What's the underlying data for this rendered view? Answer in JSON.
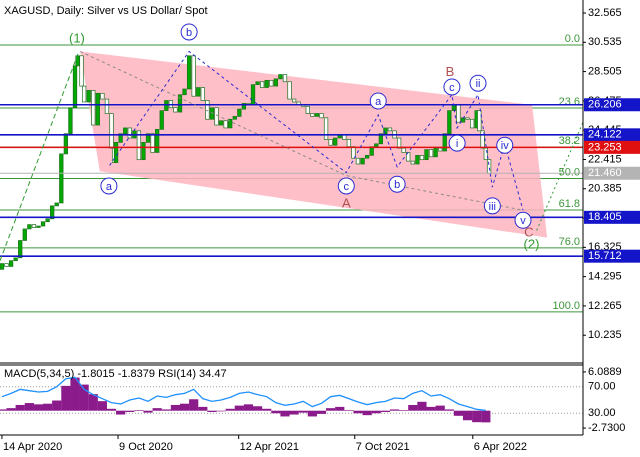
{
  "chart_data": [
    {
      "type": "candles",
      "title": "XAGUSD, Daily:  Silver vs US Dollar/ Spot",
      "color": "#00a800",
      "x": [
        -7,
        0,
        7,
        14,
        21,
        28,
        35,
        42,
        49,
        56,
        63,
        70,
        77,
        84,
        91,
        98,
        105,
        112,
        116,
        122,
        126,
        133,
        140,
        147,
        154,
        161,
        168,
        172,
        175,
        182,
        189,
        196,
        203,
        210,
        217,
        224,
        231,
        238,
        245,
        252,
        259,
        266,
        273,
        280,
        287,
        294,
        301,
        308,
        315,
        322,
        329,
        336,
        343,
        350,
        357,
        364,
        371,
        378,
        385,
        392,
        399,
        406,
        413,
        420,
        427,
        434,
        441,
        448,
        455,
        462,
        469,
        476,
        483,
        490,
        497,
        504,
        511,
        518,
        525,
        532,
        539,
        546,
        553,
        560,
        567,
        574,
        581,
        588,
        595,
        602,
        609,
        616,
        623,
        630,
        637,
        644,
        651,
        658,
        665,
        672,
        679,
        686,
        693,
        700,
        707,
        714,
        721,
        728,
        732,
        737,
        742,
        747
      ],
      "values": [
        14.8,
        15.2,
        15.0,
        15.4,
        15.6,
        16.8,
        17.6,
        17.9,
        17.7,
        17.8,
        18.1,
        18.3,
        19.2,
        19.4,
        22.8,
        24.2,
        26.0,
        28.9,
        29.6,
        27.5,
        26.4,
        27.2,
        24.8,
        27.0,
        26.6,
        25.6,
        23.2,
        22.2,
        23.6,
        24.2,
        24.6,
        23.9,
        24.4,
        22.4,
        23.6,
        24.2,
        22.9,
        24.5,
        25.8,
        26.5,
        26.0,
        25.7,
        26.9,
        27.3,
        29.6,
        26.8,
        27.4,
        26.5,
        25.2,
        26.0,
        24.8,
        25.1,
        24.6,
        25.2,
        25.4,
        25.9,
        26.3,
        26.2,
        27.6,
        27.8,
        27.4,
        27.9,
        27.5,
        28.0,
        28.3,
        27.8,
        26.6,
        26.4,
        26.2,
        26.1,
        25.6,
        25.4,
        25.6,
        25.3,
        23.8,
        23.4,
        23.9,
        24.1,
        23.8,
        23.3,
        22.5,
        22.1,
        22.5,
        22.7,
        23.3,
        23.5,
        24.2,
        24.6,
        24.4,
        23.9,
        23.2,
        22.9,
        22.3,
        22.1,
        22.7,
        22.4,
        23.1,
        22.6,
        23.2,
        23.0,
        24.2,
        25.8,
        26.2,
        25.0,
        25.3,
        25.2,
        24.6,
        25.8,
        24.4,
        23.2,
        22.4,
        21.46
      ],
      "xlim": [
        -3,
        891
      ],
      "ylim": [
        8.379,
        33.466
      ],
      "xticks": [
        {
          "value": 0,
          "label": "14 Apr 2020"
        },
        {
          "value": 178,
          "label": "9 Oct 2020"
        },
        {
          "value": 363,
          "label": "12 Apr 2021"
        },
        {
          "value": 541,
          "label": "7 Oct 2021"
        },
        {
          "value": 722,
          "label": "6 Apr 2022"
        }
      ],
      "yticks": [
        32.565,
        30.535,
        28.505,
        26.475,
        24.445,
        22.415,
        20.385,
        18.355,
        16.325,
        14.295,
        12.265,
        10.235
      ],
      "levels": [
        {
          "price": 26.206,
          "color": "#1414c8"
        },
        {
          "price": 24.122,
          "color": "#1414c8"
        },
        {
          "price": 23.253,
          "color": "#e01010"
        },
        {
          "price": 21.46,
          "label": "21.460",
          "color": "#b4b4b4"
        },
        {
          "price": 18.405,
          "color": "#1414c8"
        },
        {
          "price": 15.712,
          "color": "#1414c8"
        }
      ],
      "fib_color": "#3c963c",
      "fib_levels": [
        {
          "price": 30.35,
          "label": "0.0"
        },
        {
          "price": 25.98,
          "label": "23.6"
        },
        {
          "price": 23.28,
          "label": "38.2"
        },
        {
          "price": 21.1,
          "label": "50.0"
        },
        {
          "price": 18.91,
          "label": "61.8"
        },
        {
          "price": 16.29,
          "label": "76.0"
        },
        {
          "price": 11.85,
          "label": "100.0"
        }
      ],
      "channel": {
        "color": "#ffb4c0",
        "points": [
          [
            120,
            29.9
          ],
          [
            813,
            26.2
          ],
          [
            836,
            17.0
          ],
          [
            150,
            21.6
          ]
        ]
      },
      "wave_paths": [
        {
          "color": "#2e9b2e",
          "dash": "5,3",
          "points": [
            [
              -3,
              15.4
            ],
            [
              118,
              29.9
            ]
          ]
        },
        {
          "color": "#2e9b2e",
          "dash": "2,3",
          "points": [
            [
              820,
              17.5
            ],
            [
              891,
              25.0
            ]
          ]
        },
        {
          "color": "#8a8a8a",
          "dash": "3,3",
          "points": [
            [
              120,
              29.9
            ],
            [
              528,
              21.3
            ],
            [
              799,
              18.9
            ]
          ]
        },
        {
          "color": "#2a2ad0",
          "dash": "3,3",
          "points": [
            [
              165,
              22.0
            ],
            [
              287,
              29.9
            ],
            [
              528,
              21.5
            ],
            [
              577,
              25.5
            ],
            [
              606,
              21.9
            ],
            [
              690,
              26.9
            ],
            [
              698,
              24.6
            ],
            [
              730,
              26.9
            ],
            [
              752,
              20.5
            ],
            [
              771,
              23.5
            ],
            [
              799,
              18.9
            ]
          ]
        }
      ],
      "wave_labels": [
        {
          "text": "(1)",
          "x": 115,
          "y": 30.83,
          "color": "#2e9b2e",
          "circled": false
        },
        {
          "text": "b",
          "x": 287,
          "y": 31.25,
          "color": "#2a2ad0",
          "circled": true
        },
        {
          "text": "a",
          "x": 164,
          "y": 20.58,
          "color": "#2a2ad0",
          "circled": true
        },
        {
          "text": "a",
          "x": 577,
          "y": 26.47,
          "color": "#2a2ad0",
          "circled": true
        },
        {
          "text": "c",
          "x": 528,
          "y": 20.58,
          "color": "#2a2ad0",
          "circled": true
        },
        {
          "text": "A",
          "x": 528,
          "y": 19.4,
          "color": "#b05050",
          "circled": false
        },
        {
          "text": "b",
          "x": 606,
          "y": 20.7,
          "color": "#2a2ad0",
          "circled": true
        },
        {
          "text": "B",
          "x": 687,
          "y": 28.5,
          "color": "#b05050",
          "circled": false
        },
        {
          "text": "c",
          "x": 690,
          "y": 27.44,
          "color": "#2a2ad0",
          "circled": true
        },
        {
          "text": "ii",
          "x": 730,
          "y": 27.7,
          "color": "#2a2ad0",
          "circled": true
        },
        {
          "text": "i",
          "x": 698,
          "y": 23.55,
          "color": "#2a2ad0",
          "circled": true
        },
        {
          "text": "iv",
          "x": 771,
          "y": 23.4,
          "color": "#2a2ad0",
          "circled": true
        },
        {
          "text": "iii",
          "x": 752,
          "y": 19.2,
          "color": "#2a2ad0",
          "circled": true
        },
        {
          "text": "v",
          "x": 799,
          "y": 18.2,
          "color": "#2a2ad0",
          "circled": true
        },
        {
          "text": "C",
          "x": 808,
          "y": 17.4,
          "color": "#b05050",
          "circled": false
        },
        {
          "text": "(2)",
          "x": 812,
          "y": 16.55,
          "color": "#2e9b2e",
          "circled": false
        }
      ]
    },
    {
      "type": "macd_rsi",
      "title": "MACD(5,34,5) -1.8015 -1.8379 RSI(14) 34.47",
      "x": [
        0,
        14,
        28,
        42,
        56,
        70,
        84,
        98,
        112,
        126,
        140,
        154,
        168,
        182,
        196,
        210,
        224,
        238,
        252,
        266,
        280,
        294,
        308,
        322,
        336,
        350,
        364,
        378,
        392,
        406,
        420,
        434,
        448,
        462,
        476,
        490,
        504,
        518,
        532,
        546,
        560,
        574,
        588,
        602,
        616,
        630,
        644,
        658,
        672,
        686,
        700,
        714,
        728,
        742
      ],
      "xlim": [
        -3,
        891
      ],
      "ylim": [
        -3.813,
        7.017
      ],
      "yticks": [
        6.0889,
        {
          "value": -2.73,
          "label": "-2.7300"
        }
      ],
      "y2lim": [
        -2.6,
        101.1
      ],
      "y2ticks": [
        {
          "value": 70,
          "label": "70.00"
        },
        {
          "value": 30,
          "label": "30.00"
        }
      ],
      "series": [
        {
          "color": "#8b1a8b",
          "values": [
            0.2,
            0.4,
            0.9,
            1.2,
            1.0,
            1.1,
            1.6,
            3.9,
            5.2,
            4.1,
            2.6,
            1.5,
            0.3,
            -0.6,
            -0.2,
            0.1,
            -0.3,
            0.4,
            0.2,
            0.9,
            1.1,
            1.8,
            0.6,
            -0.2,
            -0.1,
            0.3,
            0.8,
            1.0,
            0.7,
            0.3,
            -0.4,
            -0.9,
            -0.6,
            -0.3,
            -0.9,
            -0.5,
            0.4,
            0.6,
            0.1,
            -0.4,
            -0.7,
            -0.4,
            -0.2,
            0.2,
            0.1,
            0.9,
            1.4,
            0.6,
            0.8,
            0.2,
            -0.8,
            -1.5,
            -1.8,
            -1.83
          ]
        },
        {
          "color": "#1e90ff",
          "axis": "y2",
          "values": [
            55,
            60,
            66,
            64,
            62,
            63,
            70,
            82,
            84,
            66,
            58,
            52,
            46,
            44,
            50,
            53,
            48,
            56,
            54,
            58,
            60,
            66,
            52,
            48,
            50,
            54,
            60,
            62,
            58,
            55,
            46,
            42,
            44,
            48,
            40,
            45,
            55,
            57,
            52,
            47,
            43,
            46,
            48,
            53,
            52,
            60,
            64,
            56,
            58,
            52,
            44,
            40,
            36,
            34.47
          ]
        }
      ]
    }
  ]
}
